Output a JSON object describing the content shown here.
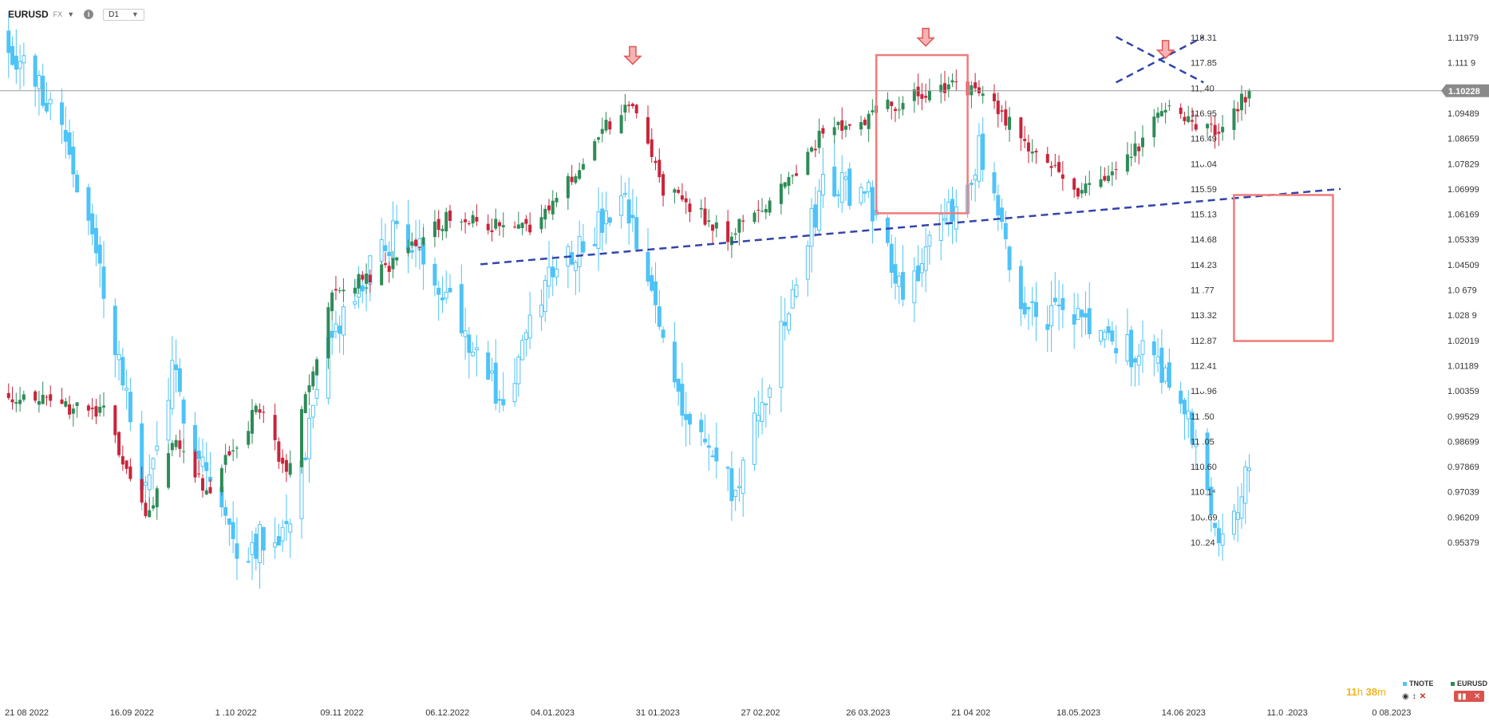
{
  "header": {
    "symbol": "EURUSD",
    "market": "FX",
    "timeframe": "D1"
  },
  "colors": {
    "up": "#2e8b57",
    "down": "#c8253a",
    "tnote": "#4fc3f7",
    "trendline": "#3344aa",
    "box": "#f07b7b",
    "arrow": "#e05555"
  },
  "chart_data": {
    "type": "candlestick",
    "series": [
      {
        "name": "TNOTE",
        "axis": "left",
        "color": "#4fc3f7"
      },
      {
        "name": "EURUSD",
        "axis": "right",
        "color": "#2e8b57"
      }
    ],
    "y_left_ticks": [
      "118.31",
      "117.85",
      "11,.40",
      "116.95",
      "116.49",
      "11ᴗ.04",
      "115.59",
      "115.13",
      "114.68",
      "114.23",
      "11 .77",
      "113.32",
      "112.87",
      "112.41",
      "11ᴗ.96",
      "11 .50",
      "11 .05",
      "110.60",
      "110.1⁴",
      "10ᴗ.69",
      "10..24"
    ],
    "y_right_ticks": [
      "1.11979",
      "1.111 9",
      "",
      "1.09489",
      "1.08659",
      "1.07829",
      "1.06999",
      "1.06169",
      "1.05339",
      "1.04509",
      "1.0 679",
      "1.028 9",
      "1.02019",
      "1.01189",
      "1.00359",
      "0.99529",
      "0.98699",
      "0.97869",
      "0.97039",
      "0.96209",
      "0.95379"
    ],
    "x_ticks": [
      "21 08 2022",
      "16.09 2022",
      "1 .10 2022",
      "09.11 2022",
      "06.12.2022",
      "04.01.2023",
      "31 01.2023",
      "27 02.202",
      "26 03.2023",
      "21 04 202",
      "18.05.2023",
      "14.06 2023",
      "11.0 .2023",
      "0 08.2023"
    ],
    "current_price": "1.10228",
    "anchors_eurusd": [
      {
        "date": "2022-08-21",
        "close": 1.003
      },
      {
        "date": "2022-09-05",
        "close": 0.998
      },
      {
        "date": "2022-09-16",
        "close": 0.996
      },
      {
        "date": "2022-09-28",
        "close": 0.962
      },
      {
        "date": "2022-10-05",
        "close": 0.988
      },
      {
        "date": "2022-10-13",
        "close": 0.97
      },
      {
        "date": "2022-10-27",
        "close": 0.999
      },
      {
        "date": "2022-11-03",
        "close": 0.975
      },
      {
        "date": "2022-11-15",
        "close": 1.035
      },
      {
        "date": "2022-12-01",
        "close": 1.045
      },
      {
        "date": "2022-12-15",
        "close": 1.06
      },
      {
        "date": "2023-01-06",
        "close": 1.056
      },
      {
        "date": "2023-01-26",
        "close": 1.09
      },
      {
        "date": "2023-02-02",
        "close": 1.099
      },
      {
        "date": "2023-02-10",
        "close": 1.07
      },
      {
        "date": "2023-02-27",
        "close": 1.055
      },
      {
        "date": "2023-03-10",
        "close": 1.065
      },
      {
        "date": "2023-03-23",
        "close": 1.087
      },
      {
        "date": "2023-04-14",
        "close": 1.099
      },
      {
        "date": "2023-04-26",
        "close": 1.104
      },
      {
        "date": "2023-05-04",
        "close": 1.102
      },
      {
        "date": "2023-05-15",
        "close": 1.087
      },
      {
        "date": "2023-05-31",
        "close": 1.069
      },
      {
        "date": "2023-06-14",
        "close": 1.083
      },
      {
        "date": "2023-06-21",
        "close": 1.096
      },
      {
        "date": "2023-07-06",
        "close": 1.088
      },
      {
        "date": "2023-07-14",
        "close": 1.1023
      }
    ],
    "anchors_tnote": [
      {
        "date": "2022-08-21",
        "close": 118.3
      },
      {
        "date": "2022-09-05",
        "close": 117.0
      },
      {
        "date": "2022-09-16",
        "close": 114.3
      },
      {
        "date": "2022-09-27",
        "close": 111.0
      },
      {
        "date": "2022-10-04",
        "close": 112.9
      },
      {
        "date": "2022-10-21",
        "close": 110.1
      },
      {
        "date": "2022-11-03",
        "close": 110.5
      },
      {
        "date": "2022-11-15",
        "close": 113.5
      },
      {
        "date": "2022-12-02",
        "close": 115.3
      },
      {
        "date": "2022-12-15",
        "close": 114.3
      },
      {
        "date": "2022-12-30",
        "close": 112.4
      },
      {
        "date": "2023-01-12",
        "close": 114.7
      },
      {
        "date": "2023-01-19",
        "close": 115.0
      },
      {
        "date": "2023-01-31",
        "close": 115.6
      },
      {
        "date": "2023-02-16",
        "close": 112.3
      },
      {
        "date": "2023-03-01",
        "close": 111.0
      },
      {
        "date": "2023-03-13",
        "close": 113.5
      },
      {
        "date": "2023-03-24",
        "close": 116.0
      },
      {
        "date": "2023-04-05",
        "close": 115.8
      },
      {
        "date": "2023-04-14",
        "close": 114.3
      },
      {
        "date": "2023-04-28",
        "close": 115.6
      },
      {
        "date": "2023-05-04",
        "close": 116.5
      },
      {
        "date": "2023-05-15",
        "close": 114.0
      },
      {
        "date": "2023-05-31",
        "close": 113.8
      },
      {
        "date": "2023-06-08",
        "close": 113.4
      },
      {
        "date": "2023-06-20",
        "close": 113.2
      },
      {
        "date": "2023-06-29",
        "close": 112.0
      },
      {
        "date": "2023-07-06",
        "close": 110.4
      },
      {
        "date": "2023-07-14",
        "close": 111.3
      }
    ],
    "annotations": {
      "trendline": [
        {
          "date": "2022-12-24",
          "value": 1.0452
        },
        {
          "date": "2023-08-07",
          "value": 1.07
        }
      ],
      "box_top": {
        "date_from": "2023-04-07",
        "date_to": "2023-05-01",
        "high": 1.114,
        "low": 1.062
      },
      "box_projection": {
        "date_from": "2023-07-10",
        "date_to": "2023-08-05",
        "high": 1.068,
        "low": 1.02
      },
      "arrows": [
        {
          "date": "2023-02-02",
          "value": 1.111
        },
        {
          "date": "2023-04-20",
          "value": 1.117
        },
        {
          "date": "2023-06-22",
          "value": 1.113
        }
      ],
      "cross": {
        "date_from": "2023-06-09",
        "date_to": "2023-07-02",
        "top": 1.12,
        "bottom": 1.105
      }
    },
    "grid": false,
    "legend": "bottom-right"
  },
  "footer": {
    "countdown_h": "11",
    "countdown_h_unit": "h",
    "countdown_m": "38",
    "countdown_m_unit": "m",
    "legend_tnote": "TNOTE",
    "legend_eurusd": "EURUSD"
  }
}
